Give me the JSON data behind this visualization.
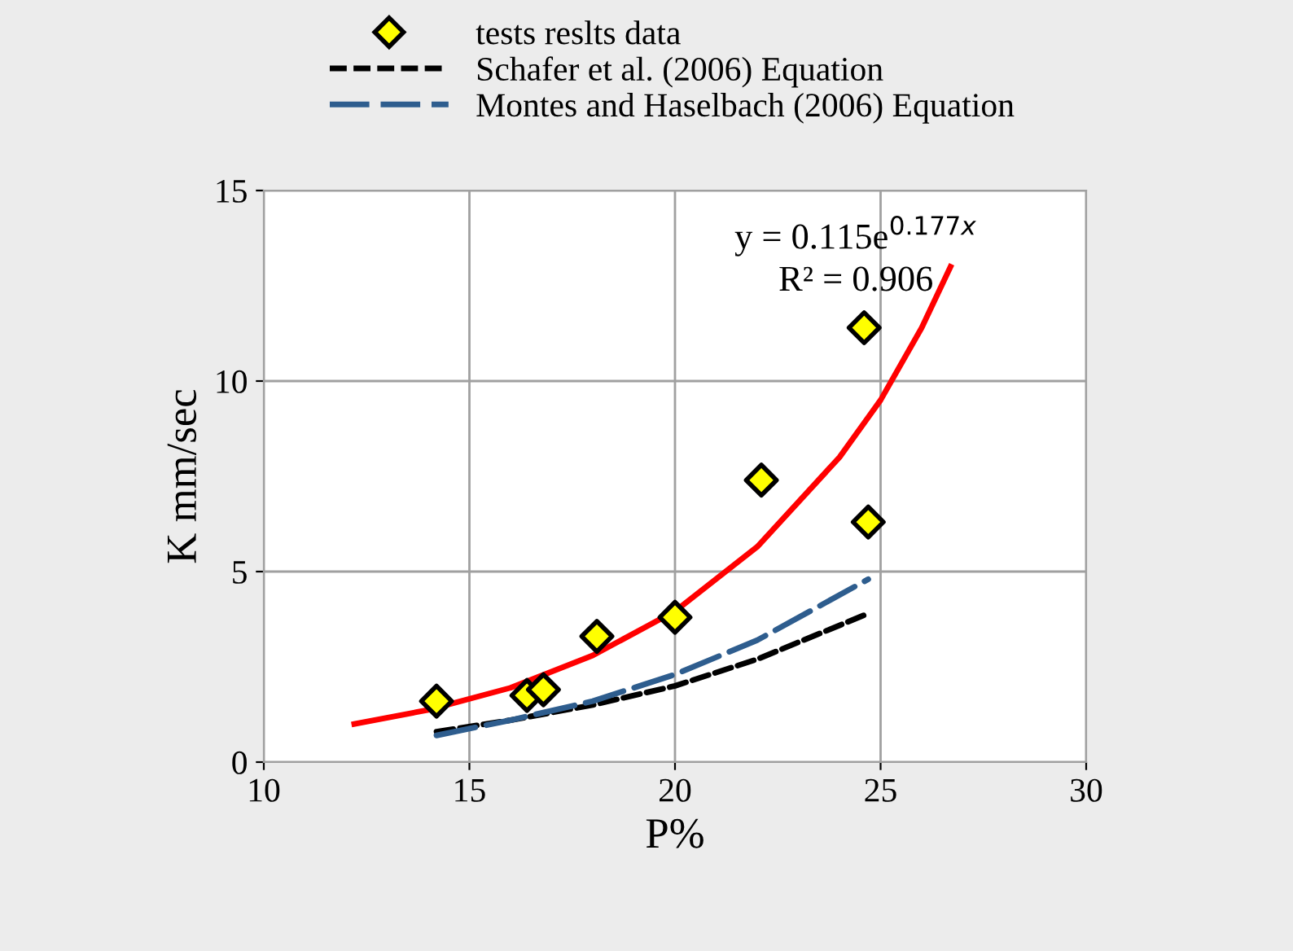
{
  "chart_data": {
    "type": "scatter",
    "xlabel": "P%",
    "ylabel": "K mm/sec",
    "xlim": [
      10,
      30
    ],
    "xticks": [
      10,
      15,
      20,
      25,
      30
    ],
    "ylim": [
      0,
      15
    ],
    "yticks": [
      0,
      5,
      10,
      15
    ],
    "grid": true,
    "legend": "top",
    "annotations": [
      "y = 0.115e$^{0.177x}$",
      "R² = 0.906"
    ],
    "series": [
      {
        "name": "tests reslts data",
        "marker": "diamond",
        "color": "#ffff00",
        "x": [
          14.2,
          16.4,
          16.8,
          18.1,
          20.0,
          22.1,
          24.6,
          24.7
        ],
        "values": [
          1.6,
          1.75,
          1.9,
          3.3,
          3.8,
          7.4,
          11.4,
          6.3
        ]
      },
      {
        "type": "line",
        "color": "#ff0000",
        "line_style": "solid",
        "marker": "none",
        "x": [
          12.2,
          14,
          16,
          18,
          20,
          22,
          24,
          25,
          26,
          26.7
        ],
        "values": [
          1.0,
          1.37,
          1.95,
          2.8,
          3.96,
          5.65,
          8.0,
          9.5,
          11.4,
          13.0
        ]
      },
      {
        "name": "Schafer et al. (2006) Equation",
        "type": "line",
        "color": "#000000",
        "line_style": "dashed",
        "marker": "none",
        "x": [
          14.2,
          16,
          18,
          20,
          22,
          24.7
        ],
        "values": [
          0.8,
          1.1,
          1.5,
          2.0,
          2.7,
          3.9
        ]
      },
      {
        "name": "Montes and Haselbach (2006) Equation",
        "type": "line",
        "color": "#2e5d8e",
        "line_style": "longdash",
        "marker": "none",
        "x": [
          14.2,
          16,
          18,
          20,
          22,
          24.7
        ],
        "values": [
          0.7,
          1.1,
          1.6,
          2.3,
          3.2,
          4.8
        ]
      }
    ]
  }
}
